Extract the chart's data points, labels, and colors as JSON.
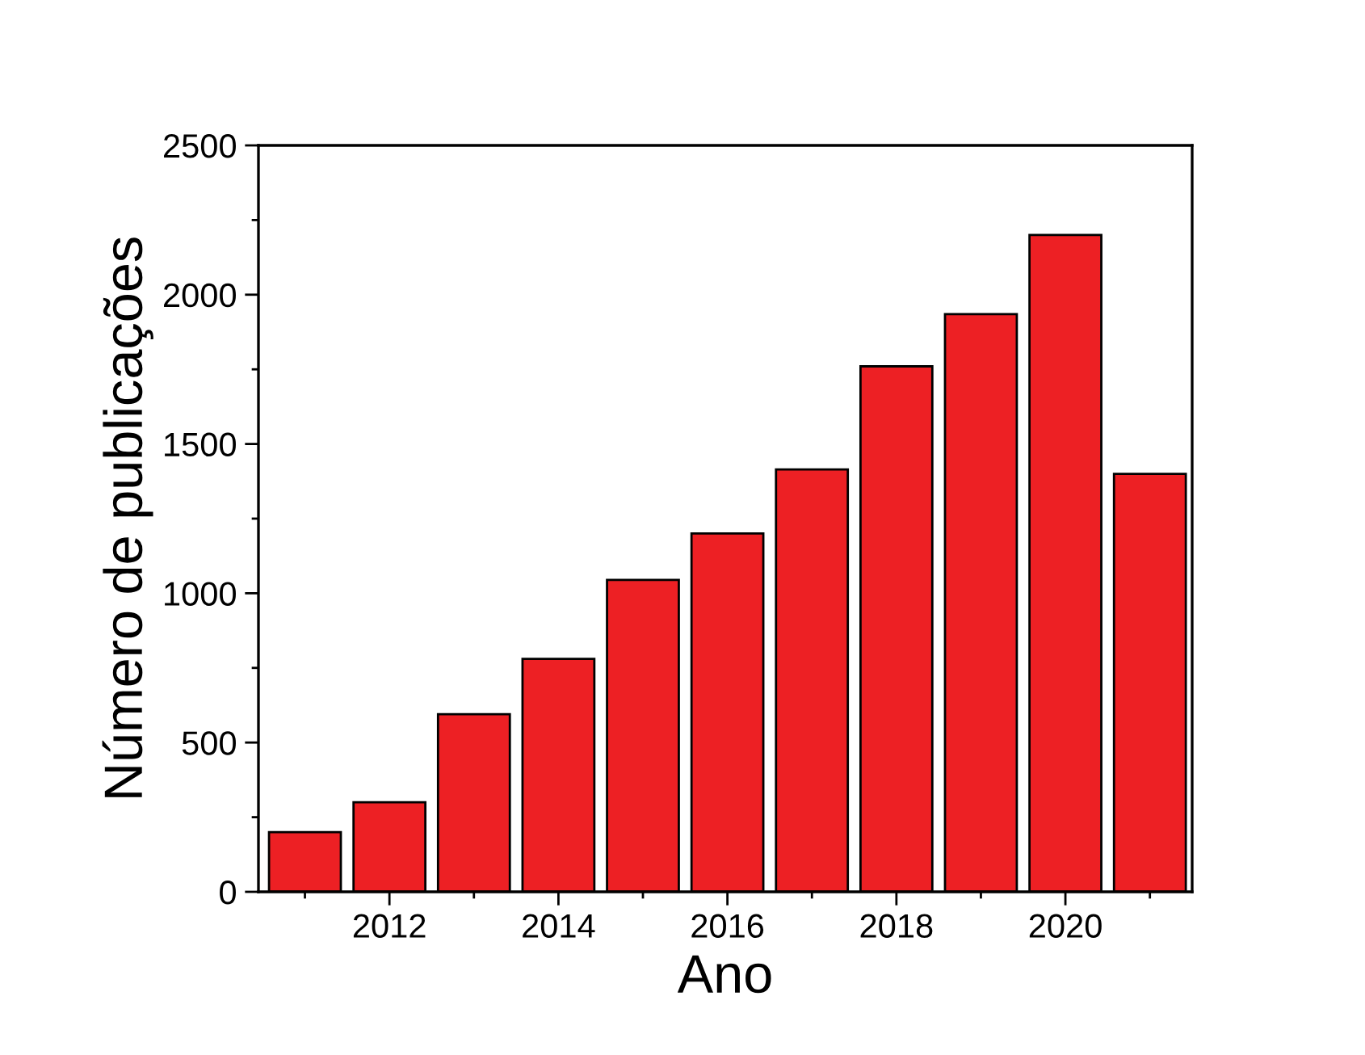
{
  "chart_data": {
    "type": "bar",
    "xlabel": "Ano",
    "ylabel": "Número de publicações",
    "x": [
      2011,
      2012,
      2013,
      2014,
      2015,
      2016,
      2017,
      2018,
      2019,
      2020,
      2021
    ],
    "values": [
      200,
      300,
      595,
      780,
      1045,
      1200,
      1415,
      1760,
      1935,
      2200,
      1400
    ],
    "color": "#ed2024",
    "xlim": [
      2010.45,
      2021.5
    ],
    "xticks": [
      2012,
      2014,
      2016,
      2018,
      2020
    ],
    "ylim": [
      0,
      2500
    ],
    "yticks": [
      0,
      500,
      1000,
      1500,
      2000,
      2500
    ],
    "grid": false,
    "legend": false
  }
}
